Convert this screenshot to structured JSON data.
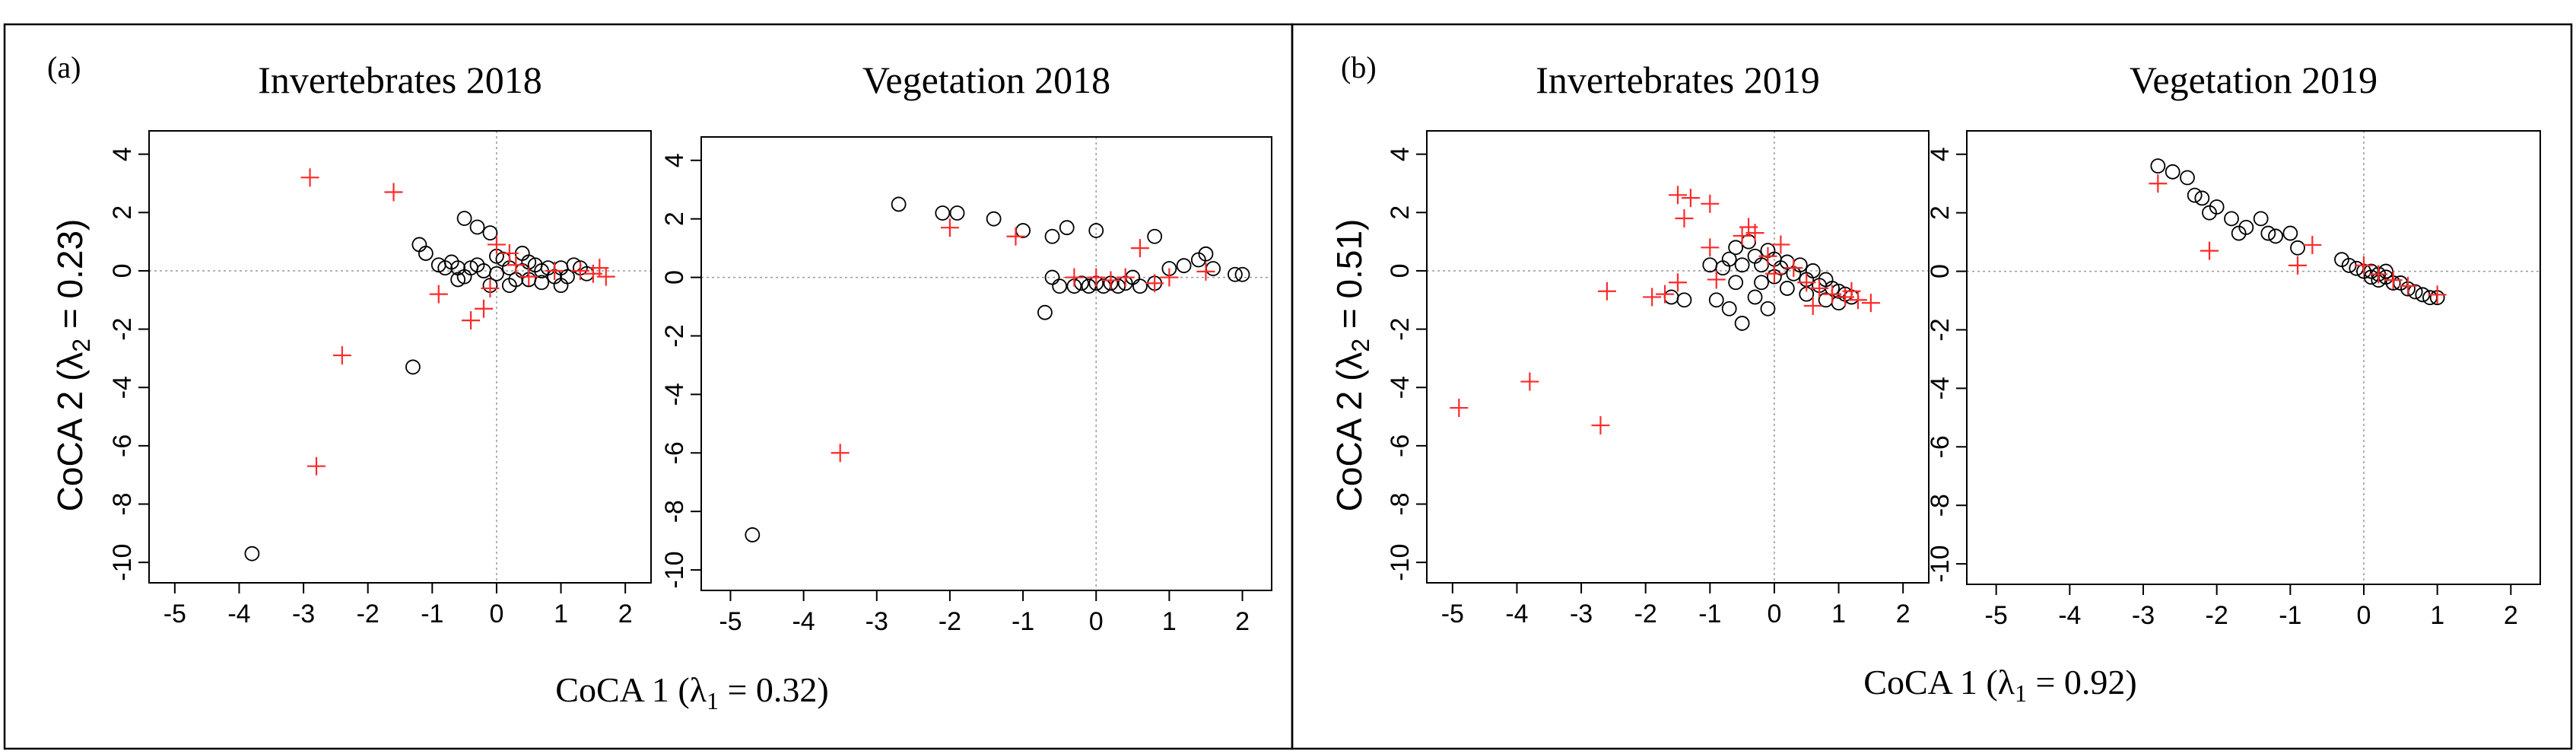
{
  "figure": {
    "panel_labels": {
      "a": "(a)",
      "b": "(b)"
    },
    "y_axis_labels": {
      "a": {
        "prefix": "CoCA 2 (λ",
        "sub": "2",
        "suffix": " = 0.23)"
      },
      "b": {
        "prefix": "CoCA 2 (λ",
        "sub": "2",
        "suffix": " = 0.51)"
      }
    },
    "x_axis_labels": {
      "a": {
        "prefix": "CoCA 1 (λ",
        "sub": "1",
        "suffix": " = 0.32)"
      },
      "b": {
        "prefix": "CoCA 1 (λ",
        "sub": "1",
        "suffix": " = 0.92)"
      }
    },
    "colors": {
      "circle": "#000000",
      "plus": "#ff2a2a",
      "frame": "#000000",
      "ref_line": "#9a9a9a"
    }
  },
  "chart_data": [
    {
      "type": "scatter",
      "title": "Invertebrates 2018",
      "xlim": [
        -5.4,
        2.4
      ],
      "ylim": [
        -10.7,
        4.8
      ],
      "xticks": [
        -5,
        -4,
        -3,
        -2,
        -1,
        0,
        1,
        2
      ],
      "yticks": [
        4,
        2,
        0,
        -2,
        -4,
        -6,
        -8,
        -10
      ],
      "series": [
        {
          "name": "sites",
          "marker": "circle",
          "points": [
            [
              -3.8,
              -9.7
            ],
            [
              -1.3,
              -3.3
            ],
            [
              -1.2,
              0.9
            ],
            [
              -1.1,
              0.6
            ],
            [
              -0.8,
              0.1
            ],
            [
              -0.7,
              0.3
            ],
            [
              -0.6,
              0.1
            ],
            [
              -0.5,
              1.8
            ],
            [
              -0.5,
              -0.2
            ],
            [
              -0.4,
              0.1
            ],
            [
              -0.3,
              1.5
            ],
            [
              -0.3,
              0.2
            ],
            [
              -0.2,
              0.0
            ],
            [
              -0.1,
              1.3
            ],
            [
              -0.1,
              -0.5
            ],
            [
              0.0,
              -0.1
            ],
            [
              0.1,
              0.4
            ],
            [
              0.2,
              0.1
            ],
            [
              0.3,
              -0.3
            ],
            [
              0.4,
              0.0
            ],
            [
              0.4,
              0.6
            ],
            [
              0.5,
              -0.3
            ],
            [
              0.6,
              0.2
            ],
            [
              0.7,
              -0.4
            ],
            [
              0.8,
              0.1
            ],
            [
              0.9,
              -0.2
            ],
            [
              1.0,
              0.1
            ],
            [
              1.1,
              -0.2
            ],
            [
              1.2,
              0.2
            ],
            [
              1.4,
              -0.1
            ],
            [
              -0.9,
              0.2
            ],
            [
              -0.6,
              -0.3
            ],
            [
              0.0,
              0.5
            ],
            [
              0.2,
              -0.5
            ],
            [
              0.5,
              0.3
            ],
            [
              0.7,
              0.0
            ],
            [
              1.0,
              -0.5
            ],
            [
              1.3,
              0.1
            ]
          ]
        },
        {
          "name": "species",
          "marker": "plus",
          "points": [
            [
              -2.9,
              3.2
            ],
            [
              -1.6,
              2.7
            ],
            [
              -2.4,
              -2.9
            ],
            [
              -2.8,
              -6.7
            ],
            [
              -0.9,
              -0.8
            ],
            [
              -0.4,
              -1.7
            ],
            [
              -0.2,
              -1.3
            ],
            [
              -0.1,
              -0.6
            ],
            [
              0.0,
              0.9
            ],
            [
              0.2,
              0.6
            ],
            [
              0.3,
              0.2
            ],
            [
              0.5,
              -0.2
            ],
            [
              0.9,
              0.0
            ],
            [
              1.3,
              0.0
            ],
            [
              1.5,
              -0.1
            ],
            [
              1.6,
              0.1
            ],
            [
              1.7,
              -0.2
            ]
          ]
        }
      ]
    },
    {
      "type": "scatter",
      "title": "Vegetation 2018",
      "xlim": [
        -5.4,
        2.4
      ],
      "ylim": [
        -10.7,
        4.8
      ],
      "xticks": [
        -5,
        -4,
        -3,
        -2,
        -1,
        0,
        1,
        2
      ],
      "yticks": [
        4,
        2,
        0,
        -2,
        -4,
        -6,
        -8,
        -10
      ],
      "series": [
        {
          "name": "sites",
          "marker": "circle",
          "points": [
            [
              -4.7,
              -8.8
            ],
            [
              -2.7,
              2.5
            ],
            [
              -2.1,
              2.2
            ],
            [
              -1.9,
              2.2
            ],
            [
              -1.4,
              2.0
            ],
            [
              -1.0,
              1.6
            ],
            [
              -0.6,
              1.4
            ],
            [
              -0.4,
              1.7
            ],
            [
              0.0,
              1.6
            ],
            [
              -0.7,
              -1.2
            ],
            [
              -0.5,
              -0.3
            ],
            [
              -0.3,
              -0.3
            ],
            [
              -0.2,
              -0.2
            ],
            [
              -0.1,
              -0.3
            ],
            [
              0.0,
              -0.2
            ],
            [
              0.1,
              -0.3
            ],
            [
              0.2,
              -0.2
            ],
            [
              0.3,
              -0.3
            ],
            [
              0.4,
              -0.2
            ],
            [
              0.6,
              -0.3
            ],
            [
              0.8,
              -0.2
            ],
            [
              1.0,
              0.3
            ],
            [
              1.2,
              0.4
            ],
            [
              1.4,
              0.6
            ],
            [
              1.5,
              0.8
            ],
            [
              1.6,
              0.3
            ],
            [
              0.8,
              1.4
            ],
            [
              1.9,
              0.1
            ],
            [
              2.0,
              0.1
            ],
            [
              -0.6,
              0.0
            ],
            [
              0.5,
              0.0
            ]
          ]
        },
        {
          "name": "species",
          "marker": "plus",
          "points": [
            [
              -3.5,
              -6.0
            ],
            [
              -2.0,
              1.7
            ],
            [
              -1.1,
              1.4
            ],
            [
              -0.3,
              0.0
            ],
            [
              0.0,
              0.0
            ],
            [
              0.2,
              -0.1
            ],
            [
              0.4,
              0.0
            ],
            [
              0.6,
              1.0
            ],
            [
              0.8,
              -0.2
            ],
            [
              1.0,
              0.0
            ],
            [
              1.5,
              0.2
            ]
          ]
        }
      ]
    },
    {
      "type": "scatter",
      "title": "Invertebrates 2019",
      "xlim": [
        -5.4,
        2.4
      ],
      "ylim": [
        -10.7,
        4.8
      ],
      "xticks": [
        -5,
        -4,
        -3,
        -2,
        -1,
        0,
        1,
        2
      ],
      "yticks": [
        4,
        2,
        0,
        -2,
        -4,
        -6,
        -8,
        -10
      ],
      "series": [
        {
          "name": "sites",
          "marker": "circle",
          "points": [
            [
              -1.6,
              -0.9
            ],
            [
              -1.4,
              -1.0
            ],
            [
              -0.9,
              -1.0
            ],
            [
              -0.7,
              -1.3
            ],
            [
              -0.5,
              -1.8
            ],
            [
              -0.3,
              -0.9
            ],
            [
              -0.1,
              -1.3
            ],
            [
              -1.0,
              0.2
            ],
            [
              -0.8,
              0.1
            ],
            [
              -0.7,
              0.4
            ],
            [
              -0.6,
              0.8
            ],
            [
              -0.5,
              0.2
            ],
            [
              -0.4,
              1.0
            ],
            [
              -0.3,
              0.5
            ],
            [
              -0.2,
              0.2
            ],
            [
              -0.1,
              0.7
            ],
            [
              0.0,
              0.4
            ],
            [
              0.1,
              0.1
            ],
            [
              0.2,
              0.3
            ],
            [
              0.3,
              -0.1
            ],
            [
              0.4,
              0.2
            ],
            [
              0.5,
              -0.3
            ],
            [
              0.6,
              0.0
            ],
            [
              0.7,
              -0.5
            ],
            [
              0.8,
              -0.3
            ],
            [
              0.9,
              -0.6
            ],
            [
              1.0,
              -0.7
            ],
            [
              1.1,
              -0.8
            ],
            [
              1.2,
              -0.9
            ],
            [
              0.0,
              -0.2
            ],
            [
              -0.2,
              -0.4
            ],
            [
              0.2,
              -0.6
            ],
            [
              0.5,
              -0.8
            ],
            [
              -0.6,
              -0.4
            ],
            [
              0.8,
              -1.0
            ],
            [
              1.0,
              -1.1
            ]
          ]
        },
        {
          "name": "species",
          "marker": "plus",
          "points": [
            [
              -4.9,
              -4.7
            ],
            [
              -3.8,
              -3.8
            ],
            [
              -2.7,
              -5.3
            ],
            [
              -2.6,
              -0.7
            ],
            [
              -1.9,
              -0.9
            ],
            [
              -1.7,
              -0.8
            ],
            [
              -1.5,
              2.6
            ],
            [
              -1.4,
              1.8
            ],
            [
              -1.3,
              2.5
            ],
            [
              -1.0,
              2.3
            ],
            [
              -1.0,
              0.8
            ],
            [
              -0.5,
              1.2
            ],
            [
              -0.4,
              1.5
            ],
            [
              -0.3,
              1.3
            ],
            [
              -0.1,
              0.5
            ],
            [
              0.1,
              0.9
            ],
            [
              0.3,
              0.1
            ],
            [
              0.5,
              -0.4
            ],
            [
              0.7,
              -0.6
            ],
            [
              0.9,
              -0.8
            ],
            [
              1.1,
              -0.9
            ],
            [
              1.3,
              -1.0
            ],
            [
              1.5,
              -1.1
            ],
            [
              1.2,
              -0.7
            ],
            [
              0.0,
              -0.1
            ],
            [
              0.6,
              -1.2
            ],
            [
              -0.9,
              -0.3
            ],
            [
              -1.5,
              -0.4
            ]
          ]
        }
      ]
    },
    {
      "type": "scatter",
      "title": "Vegetation 2019",
      "xlim": [
        -5.4,
        2.4
      ],
      "ylim": [
        -10.7,
        4.8
      ],
      "xticks": [
        -5,
        -4,
        -3,
        -2,
        -1,
        0,
        1,
        2
      ],
      "yticks": [
        4,
        2,
        0,
        -2,
        -4,
        -6,
        -8,
        -10
      ],
      "series": [
        {
          "name": "sites",
          "marker": "circle",
          "points": [
            [
              -2.8,
              3.6
            ],
            [
              -2.6,
              3.4
            ],
            [
              -2.4,
              3.2
            ],
            [
              -2.3,
              2.6
            ],
            [
              -2.2,
              2.5
            ],
            [
              -2.1,
              2.0
            ],
            [
              -2.0,
              2.2
            ],
            [
              -1.8,
              1.8
            ],
            [
              -1.7,
              1.3
            ],
            [
              -1.6,
              1.5
            ],
            [
              -1.4,
              1.8
            ],
            [
              -1.3,
              1.3
            ],
            [
              -1.2,
              1.2
            ],
            [
              -1.0,
              1.3
            ],
            [
              -0.9,
              0.8
            ],
            [
              -0.3,
              0.4
            ],
            [
              -0.2,
              0.2
            ],
            [
              -0.1,
              0.1
            ],
            [
              0.0,
              0.0
            ],
            [
              0.1,
              0.0
            ],
            [
              0.2,
              -0.1
            ],
            [
              0.2,
              -0.3
            ],
            [
              0.3,
              -0.2
            ],
            [
              0.4,
              -0.4
            ],
            [
              0.5,
              -0.4
            ],
            [
              0.6,
              -0.6
            ],
            [
              0.7,
              -0.7
            ],
            [
              0.8,
              -0.8
            ],
            [
              0.9,
              -0.9
            ],
            [
              1.0,
              -0.9
            ],
            [
              0.1,
              -0.2
            ],
            [
              0.3,
              0.0
            ]
          ]
        },
        {
          "name": "species",
          "marker": "plus",
          "points": [
            [
              -2.8,
              3.0
            ],
            [
              -2.1,
              0.7
            ],
            [
              -0.9,
              0.2
            ],
            [
              -0.7,
              0.9
            ],
            [
              0.0,
              0.2
            ],
            [
              0.2,
              -0.1
            ],
            [
              0.4,
              -0.3
            ],
            [
              0.6,
              -0.5
            ],
            [
              1.0,
              -0.8
            ]
          ]
        }
      ]
    }
  ]
}
